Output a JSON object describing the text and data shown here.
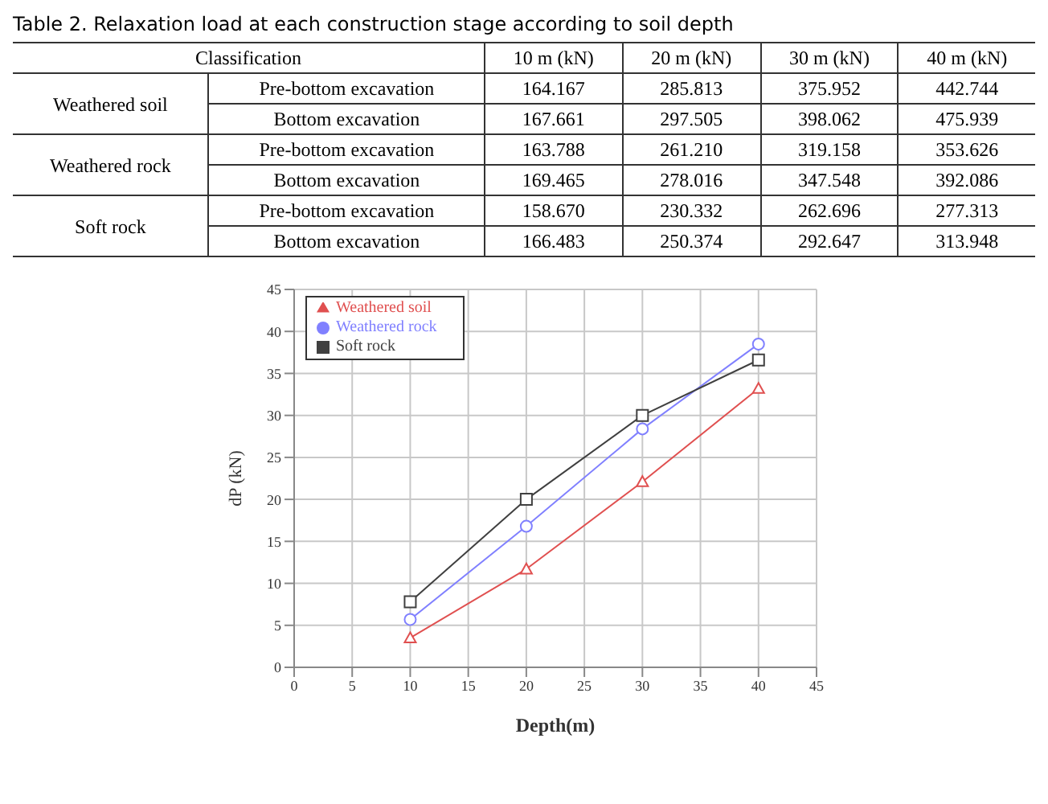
{
  "chart_data": [
    {
      "type": "other",
      "title": "Table 2. Relaxation load at each construction stage according to soil depth",
      "annotations": [
        "Classification",
        "10 m (kN)",
        "20 m (kN)",
        "30 m (kN)",
        "40 m (kN)",
        "Weathered soil",
        "Pre-bottom excavation",
        "164.167",
        "285.813",
        "375.952",
        "442.744",
        "Bottom excavation",
        "167.661",
        "297.505",
        "398.062",
        "475.939",
        "Weathered rock",
        "Pre-bottom excavation",
        "163.788",
        "261.210",
        "319.158",
        "353.626",
        "Bottom excavation",
        "169.465",
        "278.016",
        "347.548",
        "392.086",
        "Soft rock",
        "Pre-bottom excavation",
        "158.670",
        "230.332",
        "262.696",
        "277.313",
        "Bottom excavation",
        "166.483",
        "250.374",
        "292.647",
        "313.948"
      ]
    },
    {
      "type": "line",
      "xlabel": "Depth(m)",
      "ylabel": "dP (kN)",
      "x": [
        10,
        20,
        30,
        40
      ],
      "series": [
        {
          "name": "Weathered soil",
          "color": "#e05050",
          "marker": "triangle",
          "values": [
            3.5,
            11.7,
            22.1,
            33.2
          ]
        },
        {
          "name": "Weathered rock",
          "color": "#8080ff",
          "marker": "circle",
          "values": [
            5.7,
            16.8,
            28.4,
            38.5
          ]
        },
        {
          "name": "Soft rock",
          "color": "#404040",
          "marker": "square",
          "values": [
            7.8,
            20.0,
            30.0,
            36.6
          ]
        }
      ],
      "xlim": [
        0,
        45
      ],
      "xticks": [
        0,
        5,
        10,
        15,
        20,
        25,
        30,
        35,
        40,
        45
      ],
      "ylim": [
        0,
        45
      ],
      "yticks": [
        0,
        5,
        10,
        15,
        20,
        25,
        30,
        35,
        40,
        45
      ],
      "grid": true,
      "legend": "top left",
      "line_style": "solid"
    }
  ]
}
